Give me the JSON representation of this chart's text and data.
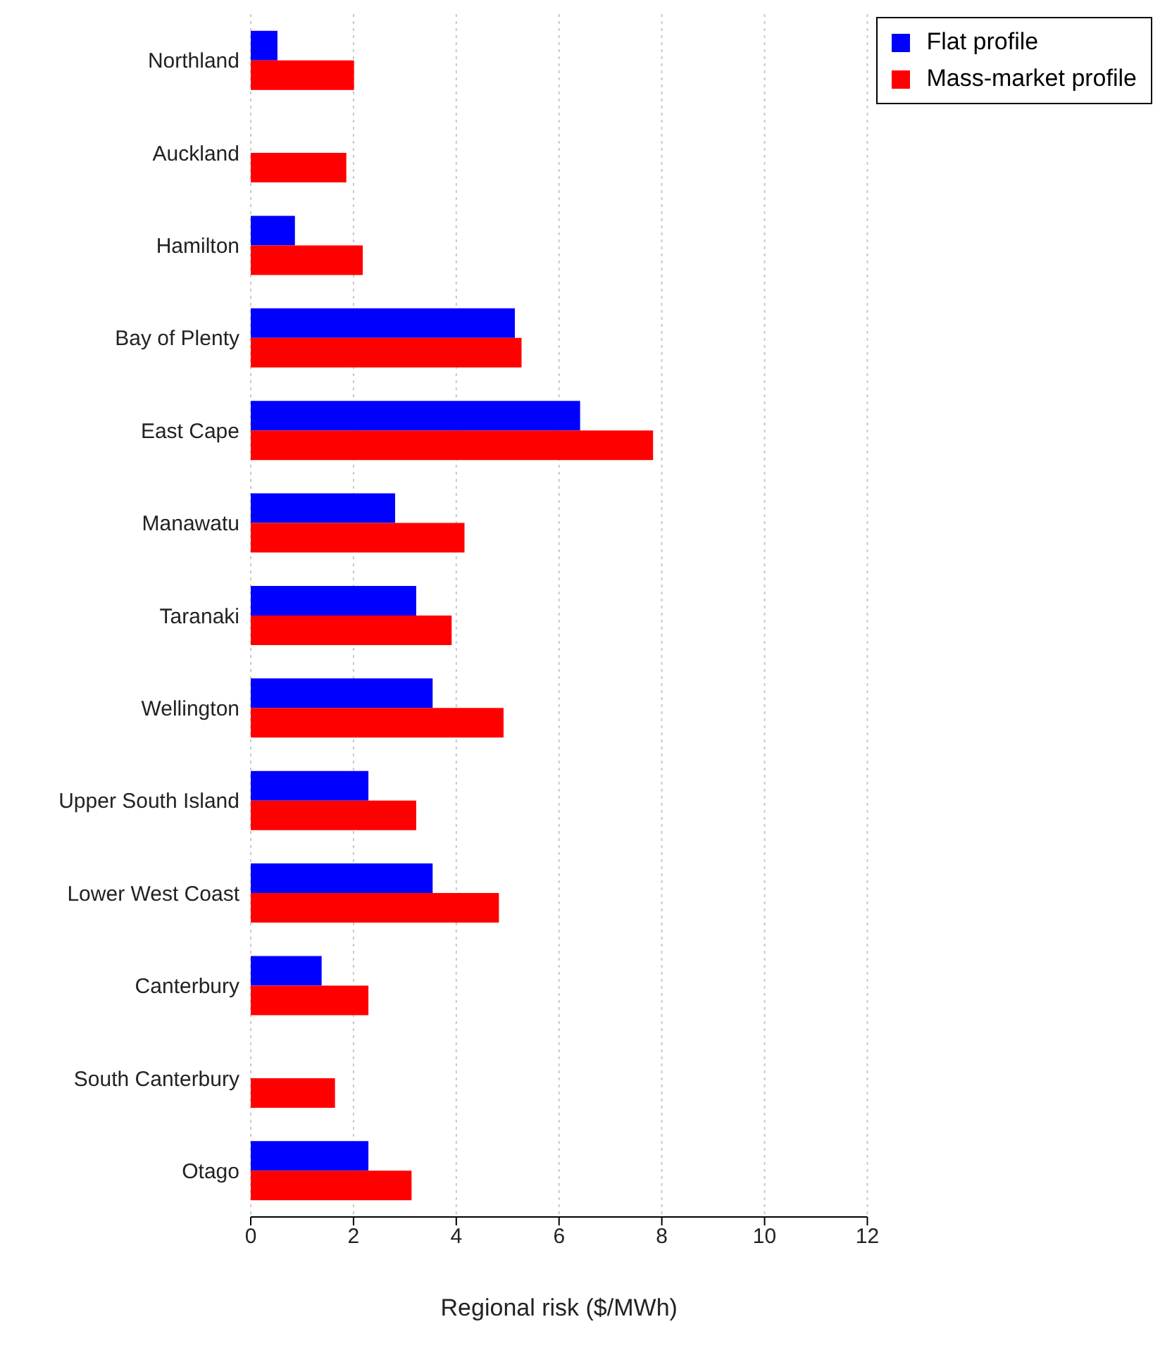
{
  "chart_data": {
    "type": "bar",
    "orientation": "horizontal",
    "xlabel": "Regional risk ($/MWh)",
    "categories": [
      "Northland",
      "Auckland",
      "Hamilton",
      "Bay of Plenty",
      "East Cape",
      "Manawatu",
      "Taranaki",
      "Wellington",
      "Upper South Island",
      "Lower West Coast",
      "Canterbury",
      "South Canterbury",
      "Otago"
    ],
    "series": [
      {
        "name": "Flat profile",
        "color": "#0000ff",
        "values": [
          0.52,
          0,
          0.86,
          5.14,
          6.41,
          2.81,
          3.22,
          3.54,
          2.29,
          3.54,
          1.38,
          0,
          2.29
        ]
      },
      {
        "name": "Mass-market profile",
        "color": "#ff0000",
        "values": [
          2.01,
          1.86,
          2.18,
          5.27,
          7.83,
          4.16,
          3.91,
          4.92,
          3.22,
          4.83,
          2.29,
          1.64,
          3.13
        ]
      }
    ],
    "xlim": [
      0,
      12
    ],
    "xticks": [
      0,
      2,
      4,
      6,
      8,
      10,
      12
    ],
    "grid": "x",
    "legend": "top right"
  }
}
